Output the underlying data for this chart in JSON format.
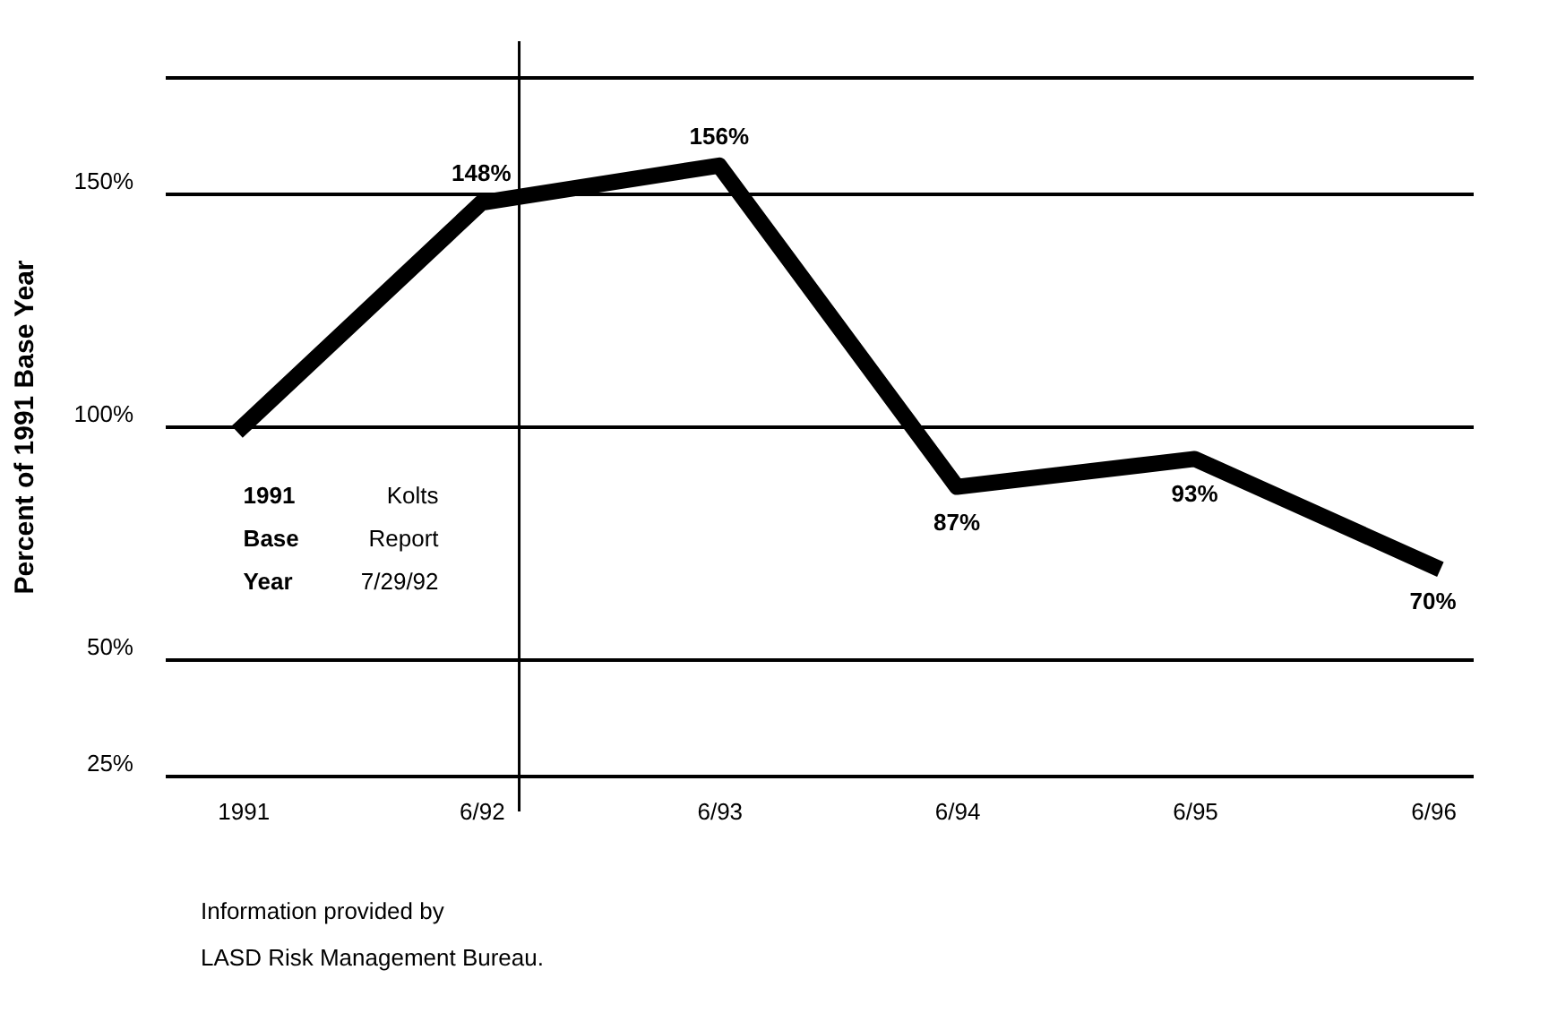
{
  "chart_data": {
    "type": "line",
    "ylabel": "Percent of 1991 Base Year",
    "x": [
      "1991-06",
      "1992-06",
      "1993-06",
      "1994-06",
      "1995-06",
      "1996-06"
    ],
    "xlim": [
      "1991-02",
      "1996-08"
    ],
    "xticks": [
      {
        "value": "1991-06",
        "label": "1991"
      },
      {
        "value": "1992-06",
        "label": "6/92"
      },
      {
        "value": "1993-06",
        "label": "6/93"
      },
      {
        "value": "1994-06",
        "label": "6/94"
      },
      {
        "value": "1995-06",
        "label": "6/95"
      },
      {
        "value": "1996-06",
        "label": "6/96"
      }
    ],
    "series": [
      {
        "color": "#000000",
        "values": [
          100,
          148,
          156,
          87,
          93,
          70
        ],
        "value_labels": [
          null,
          "148%",
          "156%",
          "87%",
          "93%",
          "70%"
        ]
      }
    ],
    "ylim": [
      25,
      175
    ],
    "yticks": [
      {
        "value": 25,
        "label": "25%"
      },
      {
        "value": 50,
        "label": "50%"
      },
      {
        "value": 100,
        "label": "100%"
      },
      {
        "value": 150,
        "label": "150%"
      },
      {
        "value": 175,
        "label": null
      }
    ],
    "grid": "y",
    "marker": "none",
    "line_style": "solid",
    "ref_lines": [
      {
        "axis": "x",
        "value": "1992-07-29",
        "label": "Kolts Report 7/29/92",
        "color": "#000000"
      }
    ],
    "annotations": [
      "1991 Base Year",
      "Information provided by LASD Risk Management Bureau."
    ]
  }
}
